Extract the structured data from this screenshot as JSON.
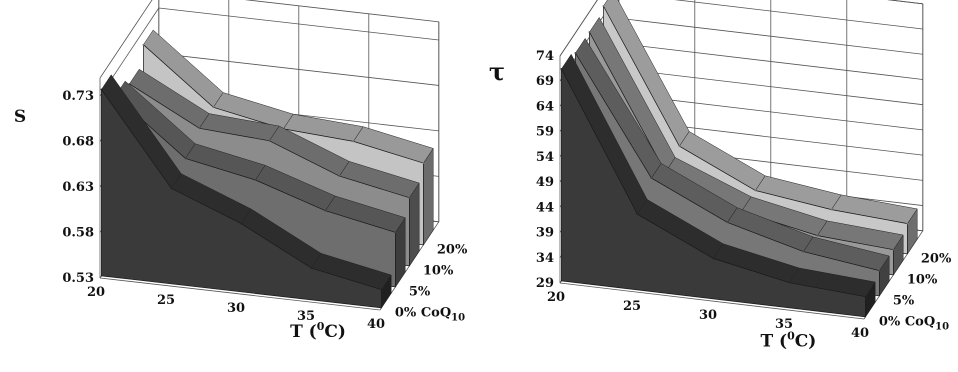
{
  "chart_data": [
    {
      "type": "area",
      "ylabel": "S",
      "xlabel": "T (0C)",
      "x": [
        20,
        25,
        30,
        35,
        40
      ],
      "x_ticks": [
        "20",
        "25",
        "30",
        "35",
        "40"
      ],
      "y_ticks": [
        "0.53",
        "0.58",
        "0.63",
        "0.68",
        "0.73"
      ],
      "ylim": [
        0.53,
        0.75
      ],
      "z_ticks": [
        "0% CoQ10",
        "5%",
        "10%",
        "20%"
      ],
      "grid": true,
      "series": [
        {
          "name": "0% CoQ10",
          "color": "#3a3a3a",
          "values": [
            0.735,
            0.635,
            0.605,
            0.565,
            0.55
          ]
        },
        {
          "name": "5%",
          "color": "#6e6e6e",
          "values": [
            0.705,
            0.645,
            0.63,
            0.605,
            0.59
          ]
        },
        {
          "name": "10%",
          "color": "#8c8c8c",
          "values": [
            0.695,
            0.655,
            0.65,
            0.62,
            0.605
          ]
        },
        {
          "name": "20%",
          "color": "#c4c4c4",
          "values": [
            0.715,
            0.655,
            0.64,
            0.635,
            0.62
          ]
        }
      ]
    },
    {
      "type": "area",
      "ylabel": "τ",
      "xlabel": "T (0C)",
      "x": [
        20,
        25,
        30,
        35,
        40
      ],
      "x_ticks": [
        "20",
        "25",
        "30",
        "35",
        "40"
      ],
      "y_ticks": [
        "29",
        "34",
        "39",
        "44",
        "49",
        "54",
        "59",
        "64",
        "69",
        "74"
      ],
      "ylim": [
        29,
        74
      ],
      "z_ticks": [
        "0% CoQ10",
        "5%",
        "10%",
        "20%"
      ],
      "grid": true,
      "series": [
        {
          "name": "0% CoQ10",
          "color": "#3a3a3a",
          "values": [
            71,
            44,
            37,
            34,
            33
          ]
        },
        {
          "name": "5%",
          "color": "#777777",
          "values": [
            70,
            47,
            40,
            36,
            34
          ]
        },
        {
          "name": "10%",
          "color": "#999999",
          "values": [
            70,
            44,
            38,
            35,
            34
          ]
        },
        {
          "name": "20%",
          "color": "#c8c8c8",
          "values": [
            71,
            45,
            38,
            36,
            35
          ]
        }
      ]
    }
  ]
}
